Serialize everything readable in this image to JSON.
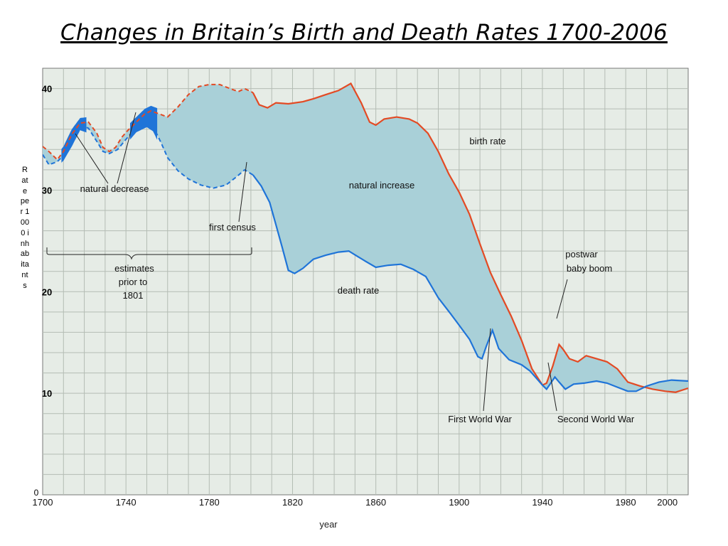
{
  "slide": {
    "title": "Changes in Britain’s Birth and Death Rates 1700-2006"
  },
  "chart_data": {
    "type": "line",
    "title": "Changes in Britain’s Birth and Death Rates 1700-2006",
    "xlabel": "year",
    "ylabel": "Rate per 1000 inhabitants",
    "xlim": [
      1700,
      2010
    ],
    "ylim": [
      0,
      42
    ],
    "x_ticks": [
      1700,
      1740,
      1780,
      1820,
      1860,
      1900,
      1940,
      1980,
      2000
    ],
    "y_ticks": [
      0,
      10,
      20,
      30,
      40
    ],
    "grid": true,
    "colors": {
      "background": "#e6ece6",
      "grid": "#b4bcb4",
      "birth": "#e34a24",
      "death": "#1f74d8",
      "fill": "#a9d0d8",
      "blob": "#1f74d8"
    },
    "series": [
      {
        "name": "birth rate",
        "estimated_until": 1801,
        "points": [
          [
            1700,
            34.3
          ],
          [
            1703,
            33.8
          ],
          [
            1707,
            33.0
          ],
          [
            1710,
            33.8
          ],
          [
            1714,
            35.5
          ],
          [
            1718,
            36.6
          ],
          [
            1722,
            36.7
          ],
          [
            1726,
            35.6
          ],
          [
            1729,
            34.2
          ],
          [
            1732,
            33.8
          ],
          [
            1735,
            34.2
          ],
          [
            1738,
            35.2
          ],
          [
            1741,
            35.9
          ],
          [
            1745,
            36.7
          ],
          [
            1749,
            37.5
          ],
          [
            1752,
            37.8
          ],
          [
            1756,
            37.5
          ],
          [
            1760,
            37.2
          ],
          [
            1765,
            38.2
          ],
          [
            1770,
            39.4
          ],
          [
            1775,
            40.2
          ],
          [
            1780,
            40.4
          ],
          [
            1785,
            40.4
          ],
          [
            1790,
            40.0
          ],
          [
            1794,
            39.7
          ],
          [
            1797,
            40.0
          ],
          [
            1801,
            39.6
          ],
          [
            1804,
            38.4
          ],
          [
            1808,
            38.1
          ],
          [
            1812,
            38.6
          ],
          [
            1818,
            38.5
          ],
          [
            1825,
            38.7
          ],
          [
            1830,
            39.0
          ],
          [
            1836,
            39.4
          ],
          [
            1842,
            39.8
          ],
          [
            1848,
            40.5
          ],
          [
            1853,
            38.6
          ],
          [
            1857,
            36.7
          ],
          [
            1860,
            36.4
          ],
          [
            1864,
            37.0
          ],
          [
            1870,
            37.2
          ],
          [
            1876,
            37.0
          ],
          [
            1880,
            36.6
          ],
          [
            1885,
            35.6
          ],
          [
            1890,
            33.8
          ],
          [
            1895,
            31.6
          ],
          [
            1900,
            29.8
          ],
          [
            1905,
            27.6
          ],
          [
            1910,
            24.7
          ],
          [
            1915,
            21.9
          ],
          [
            1920,
            19.7
          ],
          [
            1925,
            17.6
          ],
          [
            1930,
            15.2
          ],
          [
            1935,
            12.4
          ],
          [
            1940,
            10.8
          ],
          [
            1942,
            11.0
          ],
          [
            1945,
            12.7
          ],
          [
            1948,
            14.8
          ],
          [
            1950,
            14.3
          ],
          [
            1953,
            13.4
          ],
          [
            1957,
            13.1
          ],
          [
            1961,
            13.7
          ],
          [
            1966,
            13.4
          ],
          [
            1971,
            13.1
          ],
          [
            1976,
            12.4
          ],
          [
            1981,
            11.1
          ],
          [
            1987,
            10.7
          ],
          [
            1993,
            10.4
          ],
          [
            1999,
            10.2
          ],
          [
            2004,
            10.1
          ],
          [
            2010,
            10.5
          ]
        ]
      },
      {
        "name": "death rate",
        "estimated_until": 1801,
        "points": [
          [
            1700,
            33.5
          ],
          [
            1703,
            32.5
          ],
          [
            1707,
            32.8
          ],
          [
            1710,
            33.4
          ],
          [
            1714,
            34.8
          ],
          [
            1718,
            36.4
          ],
          [
            1722,
            36.1
          ],
          [
            1726,
            34.8
          ],
          [
            1729,
            33.8
          ],
          [
            1732,
            33.6
          ],
          [
            1736,
            34.0
          ],
          [
            1740,
            35.0
          ],
          [
            1745,
            36.2
          ],
          [
            1750,
            36.7
          ],
          [
            1753,
            36.3
          ],
          [
            1757,
            34.6
          ],
          [
            1760,
            33.2
          ],
          [
            1765,
            31.9
          ],
          [
            1770,
            31.1
          ],
          [
            1776,
            30.5
          ],
          [
            1782,
            30.2
          ],
          [
            1788,
            30.5
          ],
          [
            1793,
            31.3
          ],
          [
            1797,
            32.0
          ],
          [
            1801,
            31.5
          ],
          [
            1805,
            30.4
          ],
          [
            1809,
            28.8
          ],
          [
            1812,
            26.6
          ],
          [
            1815,
            24.4
          ],
          [
            1818,
            22.1
          ],
          [
            1821,
            21.8
          ],
          [
            1825,
            22.3
          ],
          [
            1830,
            23.2
          ],
          [
            1836,
            23.6
          ],
          [
            1842,
            23.9
          ],
          [
            1847,
            24.0
          ],
          [
            1851,
            23.5
          ],
          [
            1855,
            23.0
          ],
          [
            1860,
            22.4
          ],
          [
            1866,
            22.6
          ],
          [
            1872,
            22.7
          ],
          [
            1878,
            22.2
          ],
          [
            1884,
            21.5
          ],
          [
            1890,
            19.4
          ],
          [
            1896,
            17.8
          ],
          [
            1900,
            16.7
          ],
          [
            1905,
            15.3
          ],
          [
            1909,
            13.6
          ],
          [
            1911,
            13.4
          ],
          [
            1913,
            14.6
          ],
          [
            1916,
            16.2
          ],
          [
            1919,
            14.4
          ],
          [
            1924,
            13.3
          ],
          [
            1930,
            12.8
          ],
          [
            1934,
            12.2
          ],
          [
            1937,
            11.5
          ],
          [
            1940,
            10.8
          ],
          [
            1942,
            10.4
          ],
          [
            1944,
            11.0
          ],
          [
            1946,
            11.6
          ],
          [
            1948,
            11.1
          ],
          [
            1951,
            10.4
          ],
          [
            1955,
            10.9
          ],
          [
            1960,
            11.0
          ],
          [
            1966,
            11.2
          ],
          [
            1971,
            11.0
          ],
          [
            1976,
            10.6
          ],
          [
            1981,
            10.2
          ],
          [
            1985,
            10.2
          ],
          [
            1990,
            10.7
          ],
          [
            1996,
            11.1
          ],
          [
            2002,
            11.3
          ],
          [
            2010,
            11.2
          ]
        ]
      }
    ],
    "annotations": {
      "y_tick_labels": [
        "40",
        "30",
        "20",
        "10",
        "0"
      ],
      "birth_rate": "birth rate",
      "death_rate": "death rate",
      "natural_increase": "natural increase",
      "natural_decrease": "natural decrease",
      "first_census": "first  census",
      "estimates": [
        "estimates",
        "prior to",
        "1801"
      ],
      "postwar": [
        "postwar",
        "baby boom"
      ],
      "first_world_war": "First World War",
      "second_world_war": "Second World War"
    }
  }
}
